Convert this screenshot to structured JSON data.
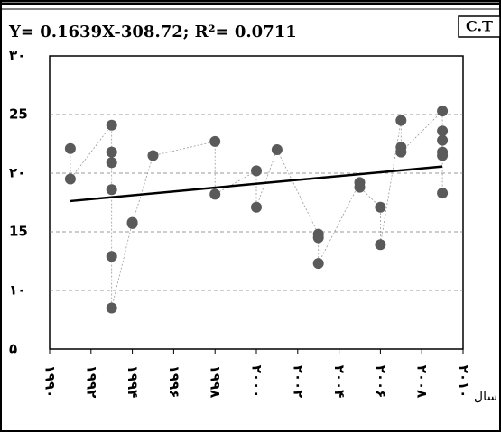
{
  "chart_data": {
    "type": "scatter",
    "title": "Y= 0.1639X-308.72; R²= 0.0711",
    "badge": "C.T",
    "x_label": "سال",
    "xlim": [
      1990,
      2010
    ],
    "xticks": [
      {
        "value": 1990,
        "label": "۱۹۹۰"
      },
      {
        "value": 1992,
        "label": "۱۹۹۲"
      },
      {
        "value": 1994,
        "label": "۱۹۹۴"
      },
      {
        "value": 1996,
        "label": "۱۹۹۶"
      },
      {
        "value": 1998,
        "label": "۱۹۹۸"
      },
      {
        "value": 2000,
        "label": "۲۰۰۰"
      },
      {
        "value": 2002,
        "label": "۲۰۰۲"
      },
      {
        "value": 2004,
        "label": "۲۰۰۴"
      },
      {
        "value": 2006,
        "label": "۲۰۰۶"
      },
      {
        "value": 2008,
        "label": "۲۰۰۸"
      },
      {
        "value": 2010,
        "label": "۲۰۱۰"
      }
    ],
    "ylim": [
      5,
      30
    ],
    "yticks": [
      {
        "value": 5,
        "label": "۵"
      },
      {
        "value": 10,
        "label": "۱۰"
      },
      {
        "value": 15,
        "label": "15"
      },
      {
        "value": 20,
        "label": "۲۰"
      },
      {
        "value": 25,
        "label": "25"
      },
      {
        "value": 30,
        "label": "۳۰"
      }
    ],
    "grid": true,
    "color": "#5a5a5a",
    "x": [
      1991,
      1991,
      1993,
      1993,
      1993,
      1993,
      1993,
      1993,
      1994,
      1994,
      1995,
      1998,
      1998,
      2000,
      2000,
      2001,
      2003,
      2003,
      2003,
      2005,
      2005,
      2006,
      2006,
      2007,
      2007,
      2007,
      2009,
      2009,
      2009,
      2009,
      2009,
      2009
    ],
    "values": [
      22.1,
      19.5,
      24.1,
      21.8,
      20.9,
      18.6,
      12.9,
      8.5,
      15.8,
      15.7,
      21.5,
      22.7,
      18.2,
      20.2,
      17.1,
      22.0,
      14.8,
      14.5,
      12.3,
      19.2,
      18.8,
      17.1,
      13.9,
      24.5,
      22.2,
      21.8,
      25.3,
      23.6,
      22.8,
      21.8,
      21.5,
      18.3
    ],
    "trendline": {
      "x": [
        1991,
        2009
      ],
      "values": [
        17.62,
        20.57
      ]
    }
  }
}
